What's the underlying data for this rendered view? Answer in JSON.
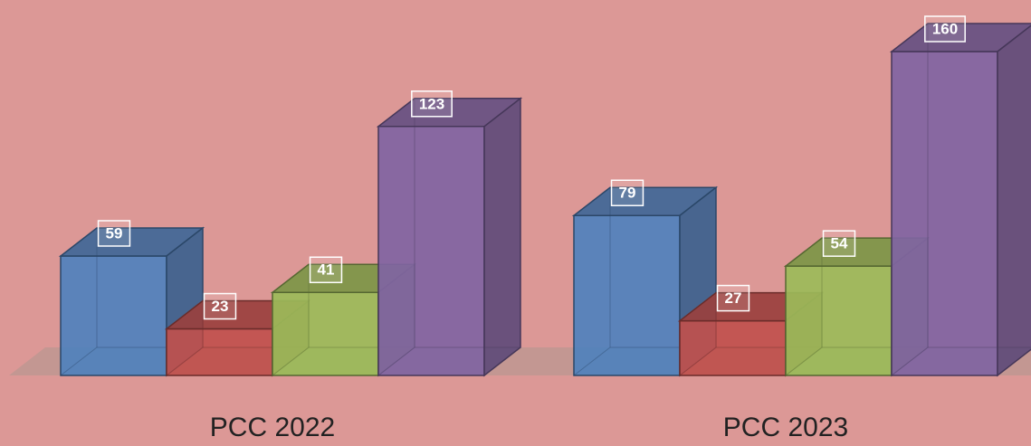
{
  "chart_data": {
    "type": "bar3d",
    "categories": [
      "PCC 2022",
      "PCC 2023"
    ],
    "series": [
      {
        "color": "#4f81bd",
        "values": [
          59,
          79
        ]
      },
      {
        "color": "#c0504d",
        "values": [
          23,
          27
        ]
      },
      {
        "color": "#9bbb59",
        "values": [
          41,
          54
        ]
      },
      {
        "color": "#8064a2",
        "values": [
          123,
          160
        ]
      }
    ],
    "ylim": [
      0,
      160
    ]
  }
}
